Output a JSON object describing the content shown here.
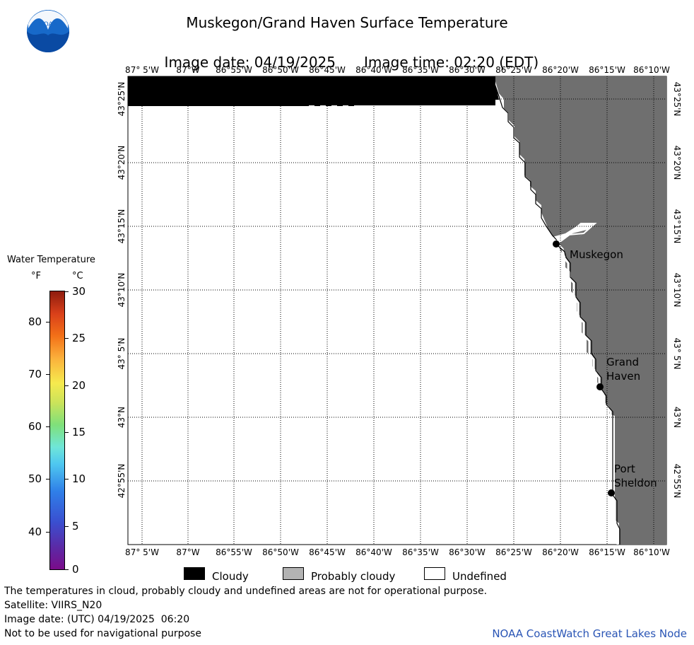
{
  "header": {
    "title": "Muskegon/Grand Haven Surface Temperature",
    "date_label": "Image date: 04/19/2025",
    "time_label": "Image time: 02:20 (EDT)"
  },
  "logo": {
    "icon": "noaa-logo",
    "text": "NOAA"
  },
  "map": {
    "lon_labels": [
      "87° 5'W",
      "87°W",
      "86°55'W",
      "86°50'W",
      "86°45'W",
      "86°40'W",
      "86°35'W",
      "86°30'W",
      "86°25'W",
      "86°20'W",
      "86°15'W",
      "86°10'W"
    ],
    "lat_labels": [
      "43°25'N",
      "43°20'N",
      "43°15'N",
      "43°10'N",
      "43° 5'N",
      "43°N",
      "42°55'N"
    ],
    "cities": [
      {
        "name_line1": "Muskegon",
        "name_line2": ""
      },
      {
        "name_line1": "Grand",
        "name_line2": "Haven"
      },
      {
        "name_line1": "Port",
        "name_line2": "Sheldon"
      }
    ],
    "colors": {
      "land": "#6f6f6f",
      "cloud": "#000000",
      "water": "#ffffff",
      "grid": "#000000"
    }
  },
  "scale": {
    "title": "Water Temperature",
    "unit_f": "°F",
    "unit_c": "°C",
    "f_ticks": [
      "80",
      "70",
      "60",
      "50",
      "40"
    ],
    "c_ticks": [
      "30",
      "25",
      "20",
      "15",
      "10",
      "5",
      "0"
    ]
  },
  "legend": {
    "cloudy": "Cloudy",
    "probably_cloudy": "Probably cloudy",
    "undefined": "Undefined",
    "colors": {
      "cloudy": "#000000",
      "probably_cloudy": "#b3b3b3",
      "undefined": "#ffffff"
    }
  },
  "footer": {
    "line1": "The temperatures in cloud, probably cloudy and undefined areas are not for operational purpose.",
    "line2": "Satellite: VIIRS_N20",
    "line3": "Image date: (UTC) 04/19/2025  06:20",
    "line4": "Not to be used for navigational purpose",
    "credit": "NOAA CoastWatch Great Lakes Node"
  }
}
